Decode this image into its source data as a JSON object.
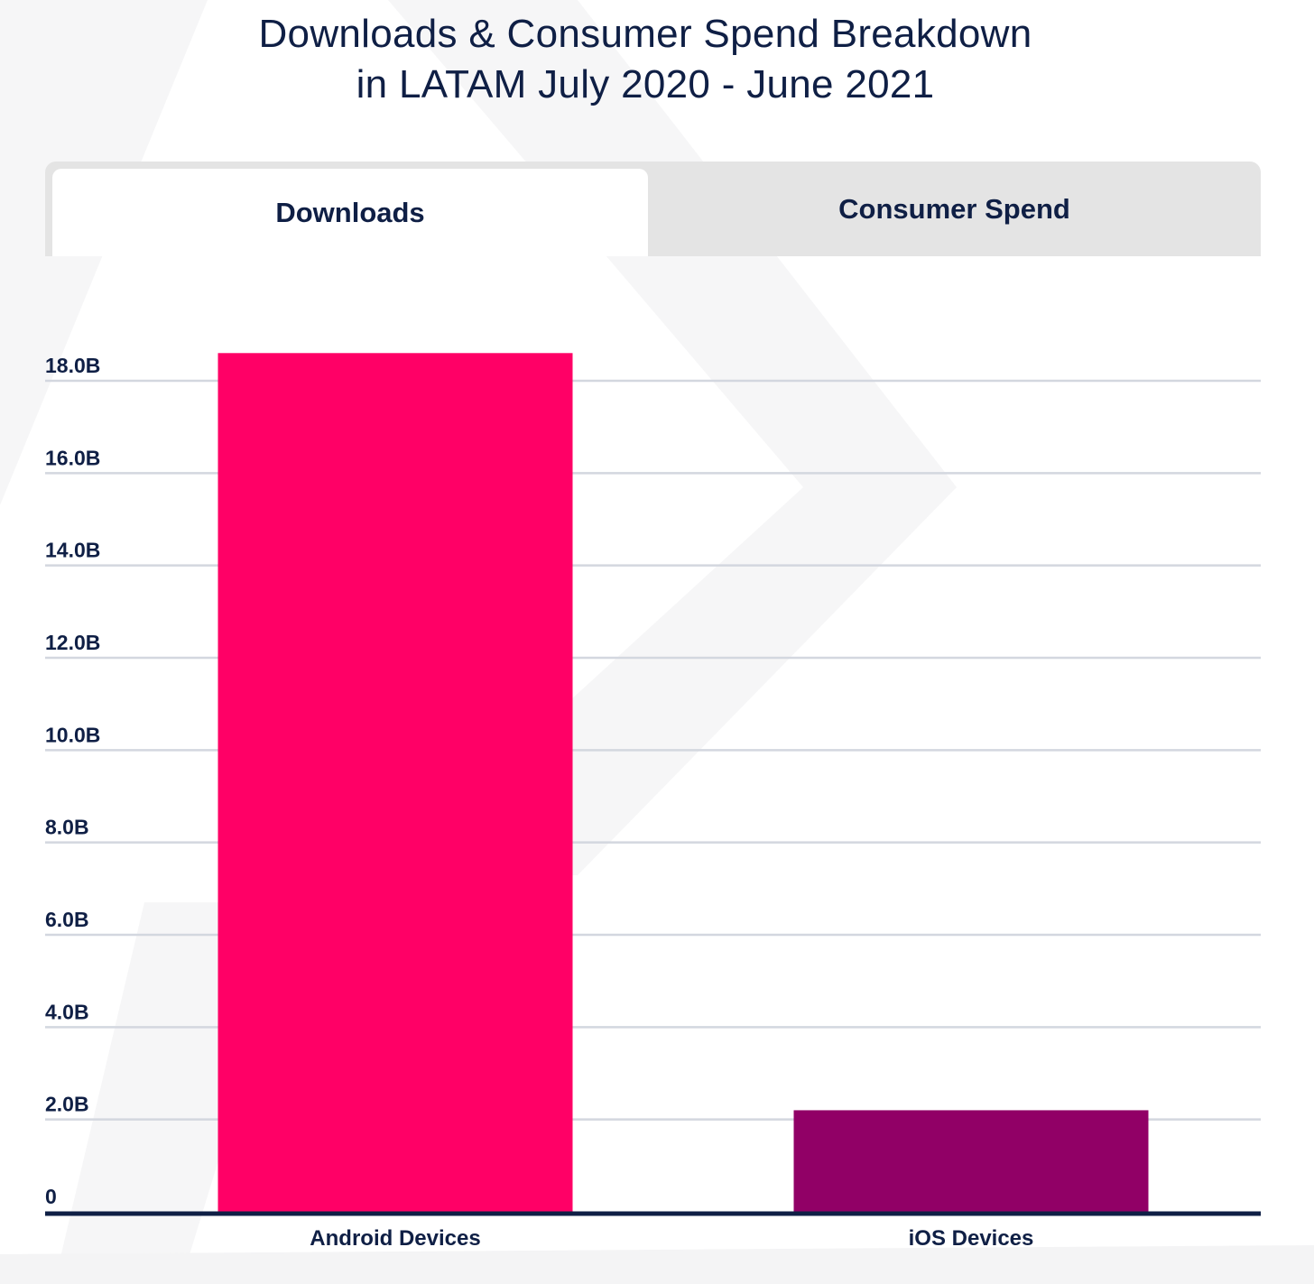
{
  "title_lines": [
    "Downloads & Consumer Spend Breakdown",
    "in LATAM July 2020 - June 2021"
  ],
  "tabs": [
    {
      "label": "Downloads",
      "active": true
    },
    {
      "label": "Consumer Spend",
      "active": false
    }
  ],
  "colors": {
    "text": "#0f1f45",
    "grid": "#d3d7df",
    "axis": "#0f1f45",
    "tab_bg": "#e4e4e4"
  },
  "chart_data": {
    "type": "bar",
    "title": "Downloads & Consumer Spend Breakdown in LATAM July 2020 - June 2021",
    "xlabel": "",
    "ylabel": "",
    "categories": [
      "Android Devices",
      "iOS Devices"
    ],
    "values": [
      18.6,
      2.2
    ],
    "unit": "B",
    "bar_colors": [
      "#ff0066",
      "#910066"
    ],
    "ylim": [
      0,
      18.0
    ],
    "yticks": [
      0,
      2,
      4,
      6,
      8,
      10,
      12,
      14,
      16,
      18
    ],
    "ytick_labels": [
      "0",
      "2.0B",
      "4.0B",
      "6.0B",
      "8.0B",
      "10.0B",
      "12.0B",
      "14.0B",
      "16.0B",
      "18.0B"
    ],
    "grid": true,
    "legend": "none"
  }
}
